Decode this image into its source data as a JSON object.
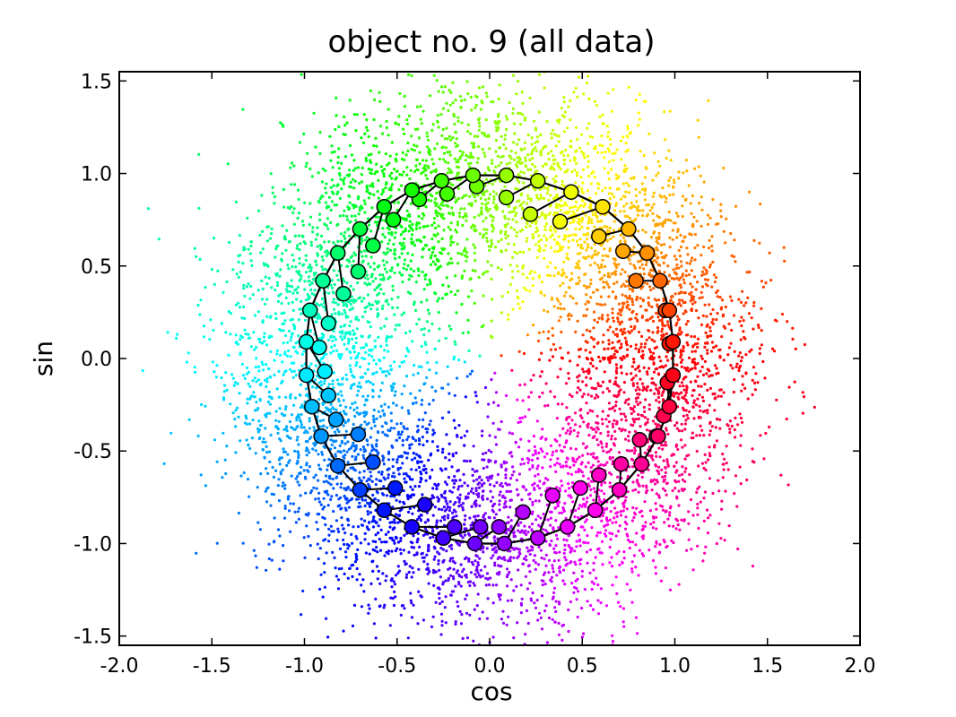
{
  "chart_data": {
    "type": "scatter",
    "title": "object no. 9 (all data)",
    "xlabel": "cos",
    "ylabel": "sin",
    "xlim": [
      -2.0,
      2.0
    ],
    "ylim": [
      -1.55,
      1.55
    ],
    "xticks": [
      "-2.0",
      "-1.5",
      "-1.0",
      "-0.5",
      "0.0",
      "0.5",
      "1.0",
      "1.5",
      "2.0"
    ],
    "yticks": [
      "-1.5",
      "-1.0",
      "-0.5",
      "0.0",
      "0.5",
      "1.0",
      "1.5"
    ],
    "xtick_values": [
      -2.0,
      -1.5,
      -1.0,
      -0.5,
      0.0,
      0.5,
      1.0,
      1.5,
      2.0
    ],
    "ytick_values": [
      -1.5,
      -1.0,
      -0.5,
      0.0,
      0.5,
      1.0,
      1.5
    ],
    "grid": false,
    "legend": "none",
    "colormap": "hsv (hue by angle)",
    "scatter_cloud": {
      "description_points": "dense noisy annular cloud around unit circle, colored by angle",
      "count": 7000,
      "radius_mean": 1.0,
      "radius_spread": 0.28
    },
    "ring_markers": {
      "series": "circle markers connected by black line along unit circle",
      "points": [
        [
          0.99,
          0.09
        ],
        [
          0.97,
          0.26
        ],
        [
          0.92,
          0.42
        ],
        [
          0.85,
          0.57
        ],
        [
          0.75,
          0.7
        ],
        [
          0.61,
          0.82
        ],
        [
          0.44,
          0.9
        ],
        [
          0.26,
          0.96
        ],
        [
          0.09,
          0.99
        ],
        [
          -0.09,
          0.99
        ],
        [
          -0.26,
          0.96
        ],
        [
          -0.42,
          0.91
        ],
        [
          -0.57,
          0.82
        ],
        [
          -0.7,
          0.7
        ],
        [
          -0.82,
          0.57
        ],
        [
          -0.9,
          0.42
        ],
        [
          -0.97,
          0.26
        ],
        [
          -0.99,
          0.09
        ],
        [
          -0.99,
          -0.09
        ],
        [
          -0.96,
          -0.26
        ],
        [
          -0.91,
          -0.42
        ],
        [
          -0.82,
          -0.58
        ],
        [
          -0.7,
          -0.71
        ],
        [
          -0.57,
          -0.82
        ],
        [
          -0.42,
          -0.91
        ],
        [
          -0.25,
          -0.97
        ],
        [
          -0.08,
          -1.0
        ],
        [
          0.08,
          -1.0
        ],
        [
          0.26,
          -0.97
        ],
        [
          0.42,
          -0.91
        ],
        [
          0.57,
          -0.82
        ],
        [
          0.7,
          -0.71
        ],
        [
          0.82,
          -0.57
        ],
        [
          0.91,
          -0.42
        ],
        [
          0.97,
          -0.26
        ],
        [
          0.99,
          -0.09
        ]
      ],
      "inner_points": [
        [
          0.97,
          0.08
        ],
        [
          0.95,
          0.26
        ],
        [
          0.79,
          0.42
        ],
        [
          0.72,
          0.58
        ],
        [
          0.59,
          0.66
        ],
        [
          0.38,
          0.74
        ],
        [
          0.22,
          0.78
        ],
        [
          0.09,
          0.87
        ],
        [
          -0.07,
          0.93
        ],
        [
          -0.23,
          0.89
        ],
        [
          -0.38,
          0.86
        ],
        [
          -0.52,
          0.75
        ],
        [
          -0.63,
          0.61
        ],
        [
          -0.71,
          0.47
        ],
        [
          -0.79,
          0.35
        ],
        [
          -0.87,
          0.19
        ],
        [
          -0.92,
          0.06
        ],
        [
          -0.89,
          -0.07
        ],
        [
          -0.87,
          -0.2
        ],
        [
          -0.83,
          -0.33
        ],
        [
          -0.71,
          -0.41
        ],
        [
          -0.63,
          -0.56
        ],
        [
          -0.51,
          -0.7
        ],
        [
          -0.35,
          -0.79
        ],
        [
          -0.19,
          -0.91
        ],
        [
          -0.05,
          -0.91
        ],
        [
          0.05,
          -0.91
        ],
        [
          0.18,
          -0.83
        ],
        [
          0.34,
          -0.74
        ],
        [
          0.49,
          -0.7
        ],
        [
          0.59,
          -0.63
        ],
        [
          0.71,
          -0.57
        ],
        [
          0.81,
          -0.44
        ],
        [
          0.9,
          -0.42
        ],
        [
          0.96,
          -0.13
        ],
        [
          0.94,
          -0.31
        ]
      ]
    }
  }
}
